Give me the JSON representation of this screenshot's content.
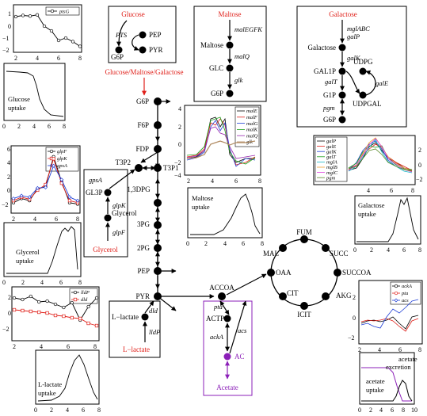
{
  "colors": {
    "substrate": "#e0201a",
    "acetate": "#8b1fb8",
    "mal_blue": "#1f3fd6",
    "mal_green": "#1ca01c",
    "mal_purple": "#9a28b0",
    "mal_brown": "#b08a60",
    "gal_cyan": "#18b8c8",
    "gal_orange": "#f0a030",
    "gal_magenta": "#e040e0",
    "gal_lime": "#8ad82a",
    "gal_olive": "#5a8a2a"
  },
  "pathway": {
    "substrates": {
      "glucose": "Glucose",
      "maltose": "Maltose",
      "galactose": "Galactose",
      "combined": "Glucose/Maltose/Galactose",
      "glycerol": "Glycerol",
      "l_lactate": "L−lactate",
      "acetate": "Acetate",
      "ac": "AC"
    },
    "metabolites": {
      "pep": "PEP",
      "g6p": "G6P",
      "pyr": "PYR",
      "f6p": "F6P",
      "fdp": "FDP",
      "t3p2": "T3P2",
      "t3p1": "T3P1",
      "gl3p": "GL3P",
      "glycerol_inner": "Glycerol",
      "dpg": "1,3DPG",
      "pg3": "3PG",
      "pg2": "2PG",
      "maltose_inner": "Maltose",
      "glc": "GLC",
      "galactose_inner": "Galactose",
      "gal1p": "GAL1P",
      "udpg": "UDPG",
      "g1p": "G1P",
      "udpgal": "UDPGAL",
      "accoa": "ACCOA",
      "actp": "ACTP",
      "l_lactate_inner": "L−lactate",
      "oaa": "OAA",
      "mal": "MAL",
      "fum": "FUM",
      "succ": "SUCC",
      "succoa": "SUCCOA",
      "akg": "AKG",
      "icit": "ICIT",
      "cit": "CIT"
    },
    "genes": {
      "pts": "PTS",
      "malegfk": "malEGFK",
      "malq": "malQ",
      "glk": "glk",
      "mglabc": "mglABC",
      "galp": "galP",
      "galk": "galK",
      "galt": "galT",
      "gale": "galE",
      "pgm": "pgm",
      "gpsa": "gpsA",
      "glpk": "glpK",
      "glpf": "glpF",
      "dld": "dld",
      "lldp": "lldP",
      "pta": "pta",
      "acka": "ackA",
      "acs": "acs"
    }
  },
  "plots": {
    "ptsg": {
      "legend": [
        "ptsG"
      ],
      "yticks": [
        "1",
        "0",
        "−1",
        "−2"
      ],
      "xticks": [
        "2",
        "4",
        "6",
        "8"
      ],
      "values": [
        0.8,
        0.9,
        0.85,
        0.95,
        0.0,
        -0.4,
        -1.2,
        -1.0,
        -1.3,
        -1.7
      ]
    },
    "glucose_uptake": {
      "label": "Glucose uptake",
      "xticks": [
        "0",
        "2",
        "4",
        "6",
        "8"
      ]
    },
    "glycerol_genes": {
      "legend": [
        "glpF",
        "glpK",
        "gpsA"
      ],
      "yticks": [
        "6",
        "4",
        "2",
        "0",
        "−2"
      ],
      "xticks": [
        "2",
        "4",
        "6",
        "8"
      ],
      "series": [
        {
          "name": "glpF",
          "values": [
            -1.8,
            -1.2,
            -1.5,
            0.2,
            0.5,
            4.8,
            1.2,
            -1.8,
            -2.0
          ]
        },
        {
          "name": "glpK",
          "values": [
            -1.5,
            -1.0,
            -1.3,
            0.0,
            0.8,
            4.5,
            1.0,
            -1.5,
            -1.8
          ]
        },
        {
          "name": "gpsA",
          "values": [
            -1.2,
            -0.8,
            -1.0,
            0.3,
            0.4,
            3.5,
            1.5,
            -1.0,
            -1.5
          ]
        }
      ]
    },
    "glycerol_uptake": {
      "label": "Glycerol uptake",
      "xticks": [
        "0",
        "2",
        "4",
        "6",
        "8"
      ]
    },
    "maltose_genes": {
      "legend": [
        "malE",
        "malF",
        "malG",
        "malK",
        "malQ",
        "glk"
      ],
      "yticks": [
        "4",
        "2",
        "0",
        "−2",
        "−4"
      ],
      "xticks": [
        "2",
        "4",
        "6",
        "8"
      ]
    },
    "maltose_uptake": {
      "label": "Maltose uptake",
      "xticks": [
        "0",
        "2",
        "4",
        "6",
        "8"
      ]
    },
    "galactose_genes": {
      "legend": [
        "galP",
        "galE",
        "galK",
        "galT",
        "mglA",
        "mglB",
        "mglC",
        "pgm"
      ],
      "yticks": [
        "2",
        "0",
        "−2"
      ],
      "xticks": [
        "4",
        "6",
        "8"
      ]
    },
    "galactose_uptake": {
      "label": "Galactose uptake",
      "xticks": [
        "0",
        "2",
        "4",
        "6",
        "8"
      ]
    },
    "lactate_genes": {
      "legend": [
        "lldP",
        "dld"
      ],
      "yticks": [
        "2",
        "0",
        "−2"
      ],
      "xticks": [
        "2",
        "4",
        "6",
        "8"
      ],
      "series": [
        {
          "name": "lldP",
          "values": [
            2.0,
            1.8,
            2.2,
            1.5,
            1.6,
            1.2,
            0.8,
            1.4,
            -0.8,
            0.9,
            2.0
          ]
        },
        {
          "name": "dld",
          "values": [
            0.5,
            0.4,
            0.3,
            0.2,
            0.1,
            -0.2,
            -0.3,
            -0.5,
            -0.6,
            -1.2,
            -1.5
          ]
        }
      ]
    },
    "lactate_uptake": {
      "label": "L-lactate uptake",
      "xticks": [
        "0",
        "2",
        "4",
        "6",
        "8"
      ]
    },
    "acetate_genes": {
      "legend": [
        "ackA",
        "pta",
        "acs"
      ],
      "yticks": [
        "2",
        "0",
        "−2"
      ],
      "xticks": [
        "2",
        "4",
        "6",
        "8"
      ]
    },
    "acetate_flux": {
      "label_excretion": "acetate excretion",
      "label_uptake": "acetate uptake",
      "xticks": [
        "0",
        "2",
        "4",
        "6",
        "8",
        "10"
      ]
    }
  }
}
